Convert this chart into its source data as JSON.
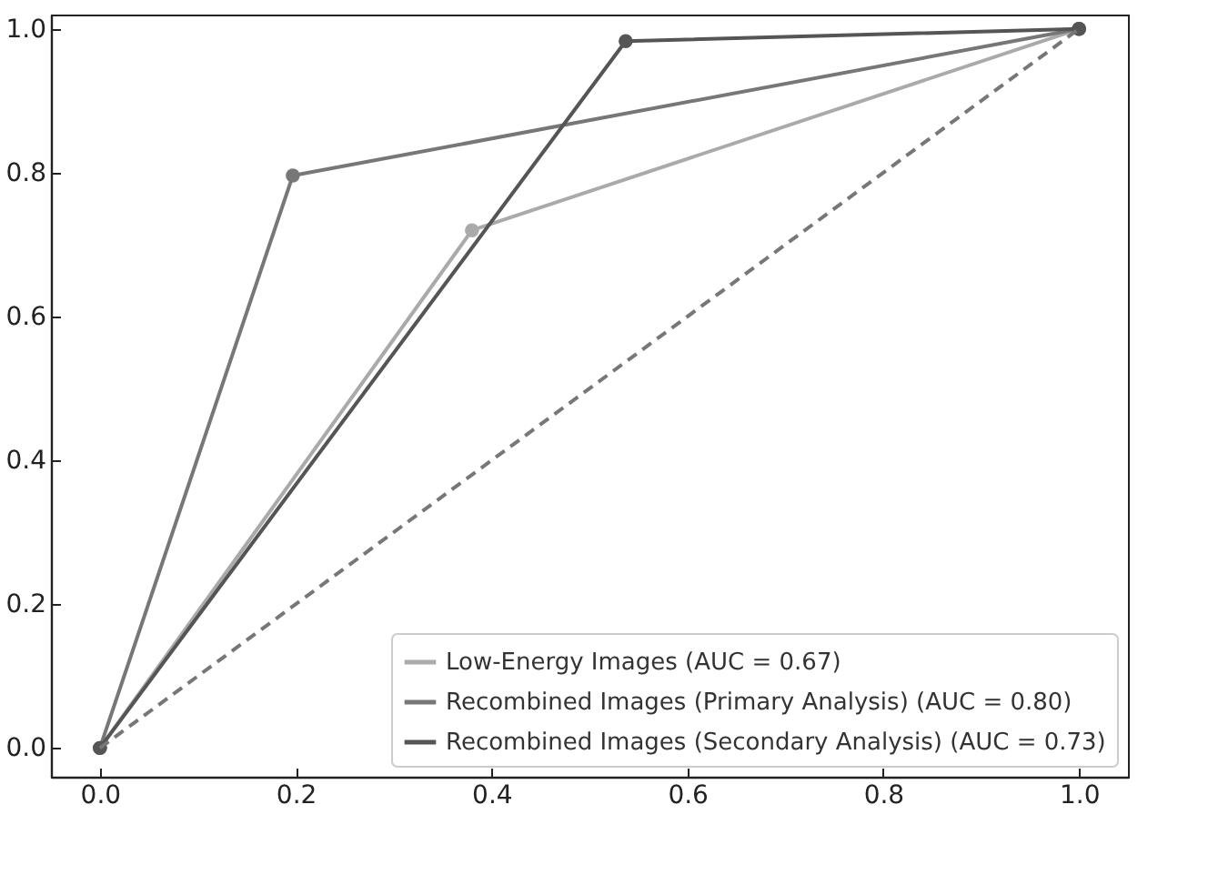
{
  "chart_data": {
    "type": "line",
    "xlim": [
      -0.05,
      1.05
    ],
    "ylim": [
      -0.04,
      1.02
    ],
    "xticks": [
      {
        "value": 0,
        "label": "0.0"
      },
      {
        "value": 0.2,
        "label": "0.2"
      },
      {
        "value": 0.4,
        "label": "0.4"
      },
      {
        "value": 0.6,
        "label": "0.6"
      },
      {
        "value": 0.8,
        "label": "0.8"
      },
      {
        "value": 1,
        "label": "1.0"
      }
    ],
    "yticks": [
      {
        "value": 0,
        "label": "0.0"
      },
      {
        "value": 0.2,
        "label": "0.2"
      },
      {
        "value": 0.4,
        "label": "0.4"
      },
      {
        "value": 0.6,
        "label": "0.6"
      },
      {
        "value": 0.8,
        "label": "0.8"
      },
      {
        "value": 1,
        "label": "1.0"
      }
    ],
    "grid": false,
    "legend": "bottom right",
    "marker": "circle",
    "series": [
      {
        "name": "Low-Energy Images (AUC = 0.67)",
        "color": "#aaaaaa",
        "x": [
          0,
          0.38,
          1
        ],
        "values": [
          0,
          0.72,
          1
        ]
      },
      {
        "name": "Recombined Images (Primary Analysis) (AUC = 0.80)",
        "color": "#777777",
        "x": [
          0,
          0.197,
          1
        ],
        "values": [
          0,
          0.796,
          1
        ]
      },
      {
        "name": "Recombined Images (Secondary Analysis) (AUC = 0.73)",
        "color": "#555555",
        "x": [
          0,
          0.537,
          1
        ],
        "values": [
          0,
          0.983,
          1
        ]
      },
      {
        "color": "#777777",
        "x": [
          0,
          1
        ],
        "values": [
          0,
          1
        ],
        "marker": "none",
        "line_style": "dashed"
      }
    ]
  }
}
